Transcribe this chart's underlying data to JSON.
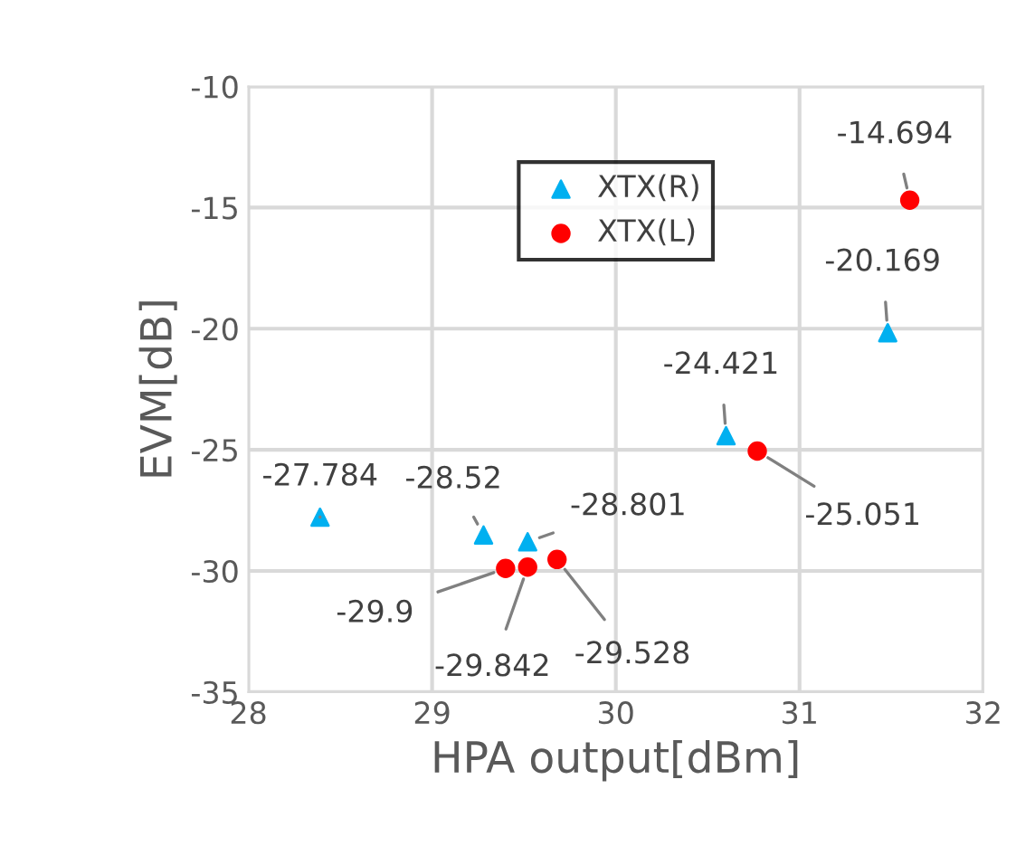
{
  "chart_data": {
    "type": "scatter",
    "xlabel": "HPA output[dBm]",
    "ylabel": "EVM[dB]",
    "xlim": [
      28,
      32
    ],
    "xticks": [
      28,
      29,
      30,
      31,
      32
    ],
    "ylim": [
      -35,
      -10
    ],
    "yticks": [
      -35,
      -30,
      -25,
      -20,
      -15,
      -10
    ],
    "grid": true,
    "legend": "top",
    "data_labels": true,
    "series": [
      {
        "name": "XTX(R)",
        "color": "#00b0f0",
        "marker": "triangle",
        "x": [
          28.39,
          29.28,
          29.52,
          30.6,
          31.48
        ],
        "values": [
          -27.784,
          -28.52,
          -28.801,
          -24.421,
          -20.169
        ]
      },
      {
        "name": "XTX(L)",
        "color": "#ff0000",
        "marker": "circle",
        "x": [
          29.4,
          29.52,
          29.68,
          30.77,
          31.6
        ],
        "values": [
          -29.9,
          -29.842,
          -29.528,
          -25.051,
          -14.694
        ]
      }
    ]
  }
}
